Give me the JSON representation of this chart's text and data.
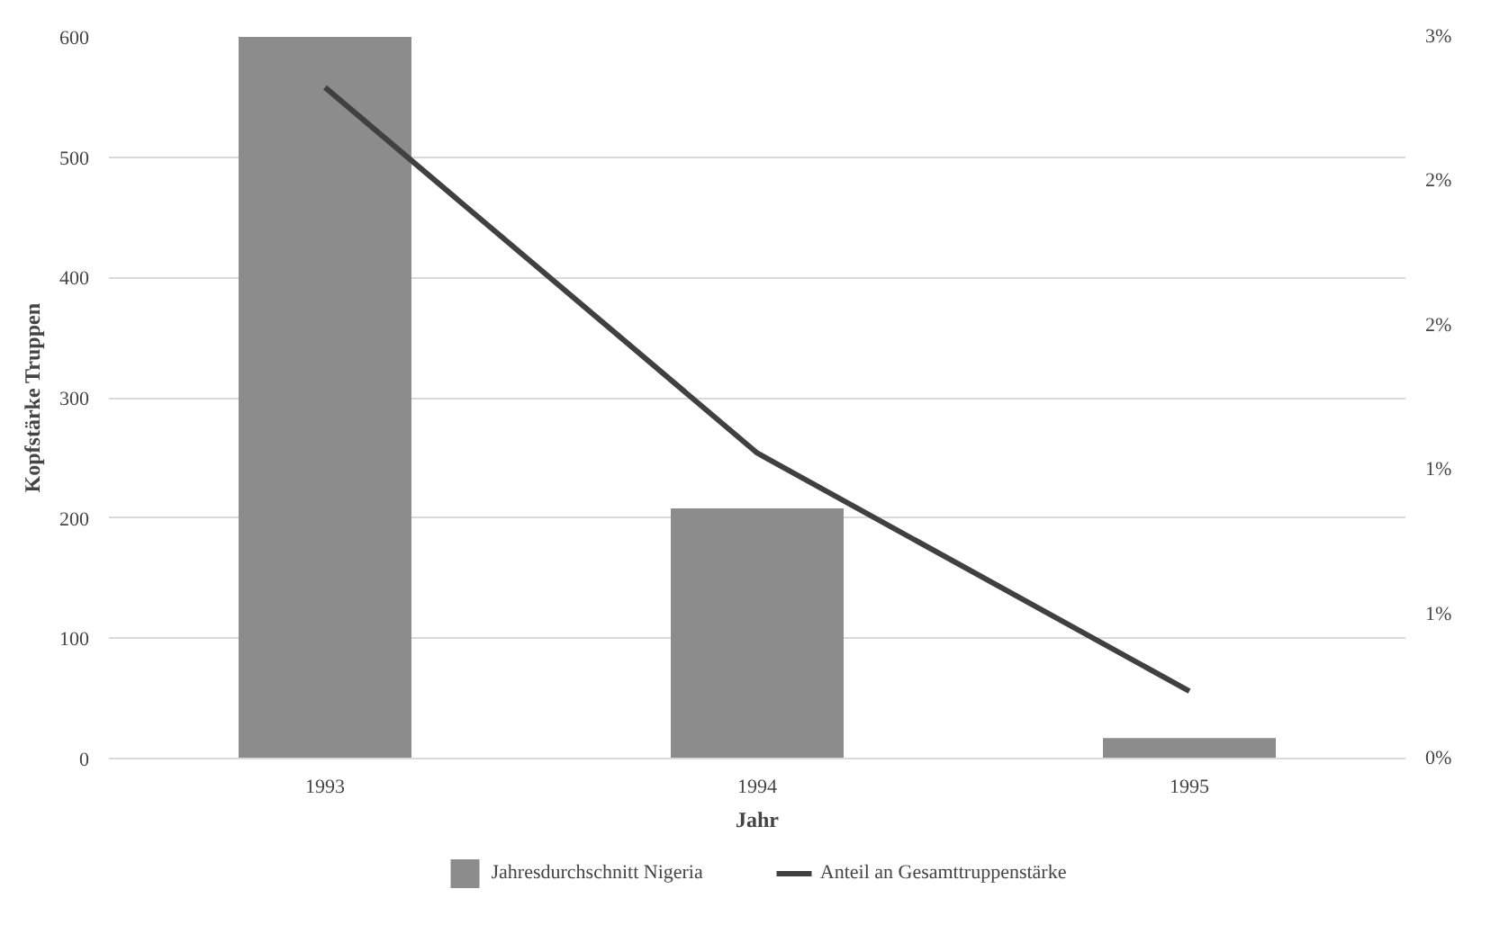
{
  "chart_data": {
    "type": "bar",
    "xlabel": "Jahr",
    "ylabel": "Kopfstärke Truppen",
    "categories": [
      "1993",
      "1994",
      "1995"
    ],
    "series": [
      {
        "name": "Jahresdurchschnitt Nigeria",
        "color": "#8c8c8c",
        "values": [
          600,
          208,
          17
        ]
      },
      {
        "name": "Anteil an Gesamttruppenstärke",
        "type": "line",
        "axis": "y2",
        "color": "#404040",
        "values": [
          2.79,
          1.27,
          0.28
        ]
      }
    ],
    "ylim": [
      0,
      600
    ],
    "yticks": [
      0,
      100,
      200,
      300,
      400,
      500,
      600
    ],
    "y2lim": [
      0,
      3
    ],
    "y2ticks": [
      {
        "value": 0,
        "label": "0%"
      },
      {
        "value": 0.6,
        "label": "1%"
      },
      {
        "value": 1.2,
        "label": "1%"
      },
      {
        "value": 1.8,
        "label": "2%"
      },
      {
        "value": 2.4,
        "label": "2%"
      },
      {
        "value": 3,
        "label": "3%"
      }
    ],
    "grid": "y",
    "legend": "bottom"
  }
}
